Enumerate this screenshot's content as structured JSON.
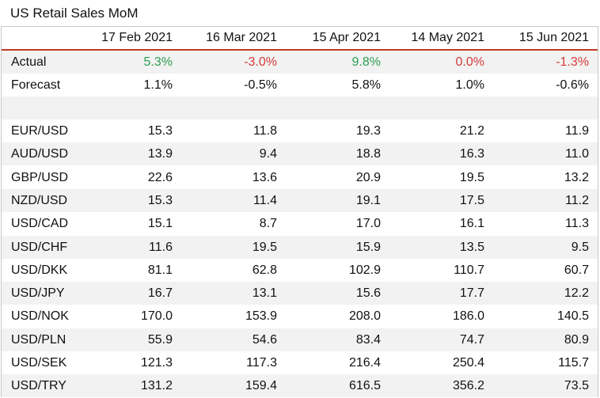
{
  "title": "US Retail Sales MoM",
  "colors": {
    "positive": "#2e9e52",
    "negative": "#d63a3a",
    "header_rule": "#c0392b",
    "stripe": "#f2f2f2"
  },
  "columns": [
    "17 Feb 2021",
    "16 Mar 2021",
    "15 Apr 2021",
    "14 May 2021",
    "15 Jun 2021"
  ],
  "actual": {
    "label": "Actual",
    "values": [
      "5.3%",
      "-3.0%",
      "9.8%",
      "0.0%",
      "-1.3%"
    ],
    "tones": [
      "pos",
      "neg",
      "pos",
      "neg",
      "neg"
    ]
  },
  "forecast": {
    "label": "Forecast",
    "values": [
      "1.1%",
      "-0.5%",
      "5.8%",
      "1.0%",
      "-0.6%"
    ]
  },
  "pairs": [
    {
      "label": "EUR/USD",
      "values": [
        "15.3",
        "11.8",
        "19.3",
        "21.2",
        "11.9"
      ]
    },
    {
      "label": "AUD/USD",
      "values": [
        "13.9",
        "9.4",
        "18.8",
        "16.3",
        "11.0"
      ]
    },
    {
      "label": "GBP/USD",
      "values": [
        "22.6",
        "13.6",
        "20.9",
        "19.5",
        "13.2"
      ]
    },
    {
      "label": "NZD/USD",
      "values": [
        "15.3",
        "11.4",
        "19.1",
        "17.5",
        "11.2"
      ]
    },
    {
      "label": "USD/CAD",
      "values": [
        "15.1",
        "8.7",
        "17.0",
        "16.1",
        "11.3"
      ]
    },
    {
      "label": "USD/CHF",
      "values": [
        "11.6",
        "19.5",
        "15.9",
        "13.5",
        "9.5"
      ]
    },
    {
      "label": "USD/DKK",
      "values": [
        "81.1",
        "62.8",
        "102.9",
        "110.7",
        "60.7"
      ]
    },
    {
      "label": "USD/JPY",
      "values": [
        "16.7",
        "13.1",
        "15.6",
        "17.7",
        "12.2"
      ]
    },
    {
      "label": "USD/NOK",
      "values": [
        "170.0",
        "153.9",
        "208.0",
        "186.0",
        "140.5"
      ]
    },
    {
      "label": "USD/PLN",
      "values": [
        "55.9",
        "54.6",
        "83.4",
        "74.7",
        "80.9"
      ]
    },
    {
      "label": "USD/SEK",
      "values": [
        "121.3",
        "117.3",
        "216.4",
        "250.4",
        "115.7"
      ]
    },
    {
      "label": "USD/TRY",
      "values": [
        "131.2",
        "159.4",
        "616.5",
        "356.2",
        "73.5"
      ]
    }
  ]
}
